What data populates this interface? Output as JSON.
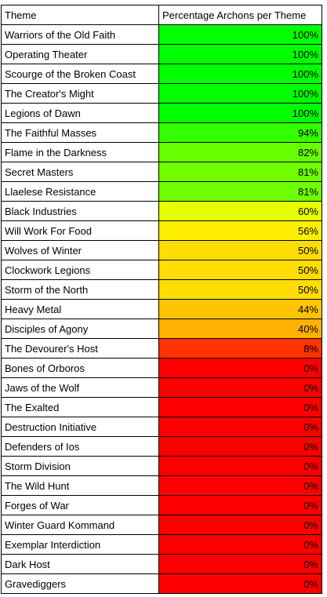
{
  "headers": {
    "theme": "Theme",
    "percentage": "Percentage Archons per Theme"
  },
  "rows": [
    {
      "theme": "Warriors of the Old Faith",
      "pct": "100%",
      "color": "#00ff00"
    },
    {
      "theme": "Operating Theater",
      "pct": "100%",
      "color": "#00ff00"
    },
    {
      "theme": "Scourge of the Broken Coast",
      "pct": "100%",
      "color": "#00ff00"
    },
    {
      "theme": "The Creator's Might",
      "pct": "100%",
      "color": "#00ff00"
    },
    {
      "theme": "Legions of Dawn",
      "pct": "100%",
      "color": "#00ff00"
    },
    {
      "theme": "The Faithful Masses",
      "pct": "94%",
      "color": "#33ff00"
    },
    {
      "theme": "Flame in the Darkness",
      "pct": "82%",
      "color": "#66ff00"
    },
    {
      "theme": "Secret Masters",
      "pct": "81%",
      "color": "#70ff00"
    },
    {
      "theme": "Llaelese Resistance",
      "pct": "81%",
      "color": "#70ff00"
    },
    {
      "theme": "Black Industries",
      "pct": "60%",
      "color": "#e6ff00"
    },
    {
      "theme": "Will Work For Food",
      "pct": "56%",
      "color": "#ffee00"
    },
    {
      "theme": "Wolves of Winter",
      "pct": "50%",
      "color": "#ffdd00"
    },
    {
      "theme": "Clockwork Legions",
      "pct": "50%",
      "color": "#ffdd00"
    },
    {
      "theme": "Storm of the North",
      "pct": "50%",
      "color": "#ffdd00"
    },
    {
      "theme": "Heavy Metal",
      "pct": "44%",
      "color": "#ffc400"
    },
    {
      "theme": "Disciples of Agony",
      "pct": "40%",
      "color": "#ffb000"
    },
    {
      "theme": "The Devourer's Host",
      "pct": "8%",
      "color": "#ff3300"
    },
    {
      "theme": "Bones of Orboros",
      "pct": "0%",
      "color": "#ff0000"
    },
    {
      "theme": "Jaws of the Wolf",
      "pct": "0%",
      "color": "#ff0000"
    },
    {
      "theme": "The Exalted",
      "pct": "0%",
      "color": "#ff0000"
    },
    {
      "theme": "Destruction Initiative",
      "pct": "0%",
      "color": "#ff0000"
    },
    {
      "theme": "Defenders of Ios",
      "pct": "0%",
      "color": "#ff0000"
    },
    {
      "theme": "Storm Division",
      "pct": "0%",
      "color": "#ff0000"
    },
    {
      "theme": "The Wild Hunt",
      "pct": "0%",
      "color": "#ff0000"
    },
    {
      "theme": "Forges of War",
      "pct": "0%",
      "color": "#ff0000"
    },
    {
      "theme": "Winter Guard Kommand",
      "pct": "0%",
      "color": "#ff0000"
    },
    {
      "theme": "Exemplar Interdiction",
      "pct": "0%",
      "color": "#ff0000"
    },
    {
      "theme": "Dark Host",
      "pct": "0%",
      "color": "#ff0000"
    },
    {
      "theme": "Gravediggers",
      "pct": "0%",
      "color": "#ff0000"
    }
  ]
}
